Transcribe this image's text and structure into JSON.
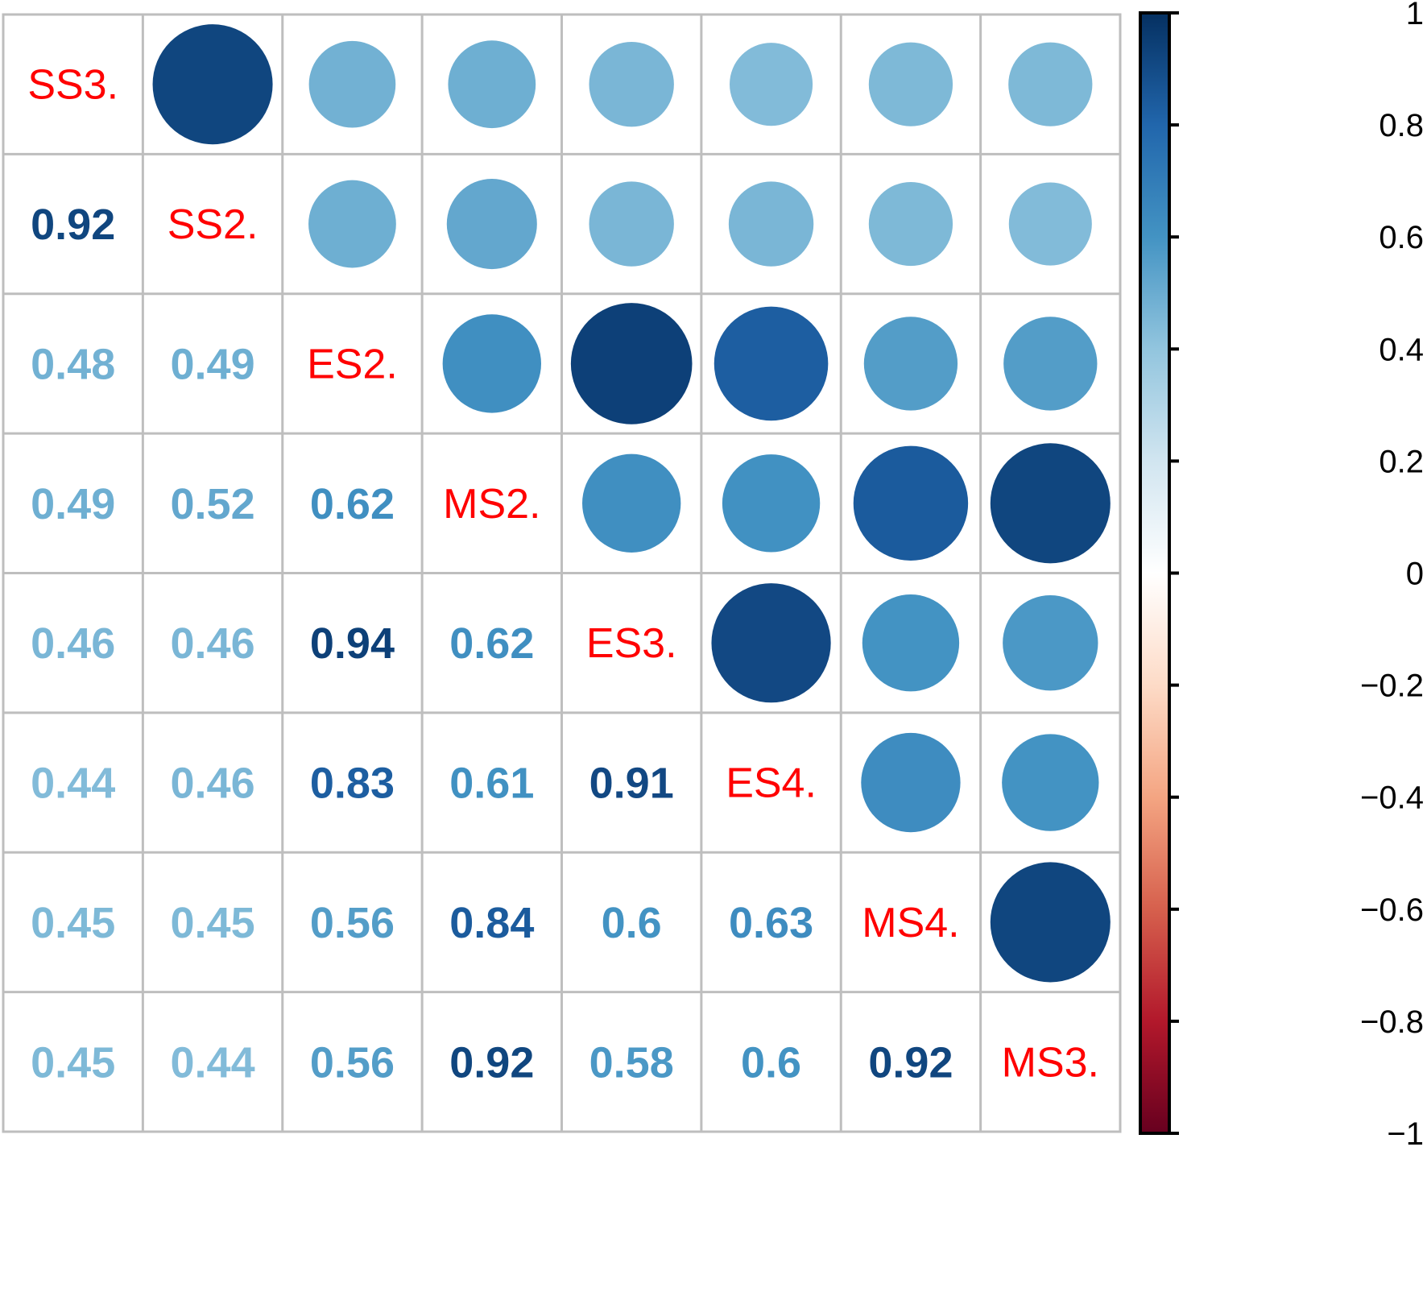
{
  "chart_data": {
    "type": "heatmap",
    "subtype": "correlation-matrix (corrplot, upper=circle, lower=number)",
    "title": "",
    "variables": [
      "SS3.",
      "SS2.",
      "ES2.",
      "MS2.",
      "ES3.",
      "ES4.",
      "MS4.",
      "MS3."
    ],
    "matrix": [
      [
        1.0,
        0.92,
        0.48,
        0.49,
        0.46,
        0.44,
        0.45,
        0.45
      ],
      [
        0.92,
        1.0,
        0.49,
        0.52,
        0.46,
        0.46,
        0.45,
        0.44
      ],
      [
        0.48,
        0.49,
        1.0,
        0.62,
        0.94,
        0.83,
        0.56,
        0.56
      ],
      [
        0.49,
        0.52,
        0.62,
        1.0,
        0.62,
        0.61,
        0.84,
        0.92
      ],
      [
        0.46,
        0.46,
        0.94,
        0.62,
        1.0,
        0.91,
        0.6,
        0.58
      ],
      [
        0.44,
        0.46,
        0.83,
        0.61,
        0.91,
        1.0,
        0.63,
        0.6
      ],
      [
        0.45,
        0.45,
        0.56,
        0.84,
        0.6,
        0.63,
        1.0,
        0.92
      ],
      [
        0.45,
        0.44,
        0.56,
        0.92,
        0.58,
        0.6,
        0.92,
        1.0
      ]
    ],
    "lower_labels": [
      [
        "",
        "",
        "",
        "",
        "",
        "",
        "",
        ""
      ],
      [
        "0.92",
        "",
        "",
        "",
        "",
        "",
        "",
        ""
      ],
      [
        "0.48",
        "0.49",
        "",
        "",
        "",
        "",
        "",
        ""
      ],
      [
        "0.49",
        "0.52",
        "0.62",
        "",
        "",
        "",
        "",
        ""
      ],
      [
        "0.46",
        "0.46",
        "0.94",
        "0.62",
        "",
        "",
        "",
        ""
      ],
      [
        "0.44",
        "0.46",
        "0.83",
        "0.61",
        "0.91",
        "",
        "",
        ""
      ],
      [
        "0.45",
        "0.45",
        "0.56",
        "0.84",
        "0.6",
        "0.63",
        "",
        ""
      ],
      [
        "0.45",
        "0.44",
        "0.56",
        "0.92",
        "0.58",
        "0.6",
        "0.92",
        ""
      ]
    ],
    "upper_display": "circle",
    "lower_display": "number",
    "diagonal_display": "variable name",
    "diagonal_label_color": "#ff0000",
    "grid": true,
    "grid_color": "#bebebe",
    "colorbar": {
      "position": "right",
      "range": [
        -1,
        1
      ],
      "ticks": [
        "1",
        "0.8",
        "0.6",
        "0.4",
        "0.2",
        "0",
        "−0.2",
        "−0.4",
        "−0.6",
        "−0.8",
        "−1"
      ],
      "tick_values": [
        1,
        0.8,
        0.6,
        0.4,
        0.2,
        0,
        -0.2,
        -0.4,
        -0.6,
        -0.8,
        -1
      ],
      "palette": "RdBu",
      "stops": [
        {
          "v": -1.0,
          "color": "#67001f"
        },
        {
          "v": -0.8,
          "color": "#b2182b"
        },
        {
          "v": -0.6,
          "color": "#d6604d"
        },
        {
          "v": -0.4,
          "color": "#f4a582"
        },
        {
          "v": -0.2,
          "color": "#fddbc7"
        },
        {
          "v": 0.0,
          "color": "#ffffff"
        },
        {
          "v": 0.2,
          "color": "#d1e5f0"
        },
        {
          "v": 0.4,
          "color": "#92c5de"
        },
        {
          "v": 0.6,
          "color": "#4393c3"
        },
        {
          "v": 0.8,
          "color": "#2166ac"
        },
        {
          "v": 1.0,
          "color": "#053061"
        }
      ]
    }
  }
}
